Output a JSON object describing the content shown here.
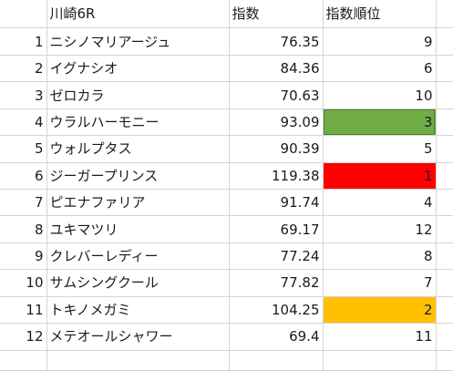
{
  "header": {
    "race": "川崎6R",
    "index": "指数",
    "rank": "指数順位"
  },
  "rows": [
    {
      "no": "1",
      "name": "ニシノマリアージュ",
      "index": "76.35",
      "rank": "9",
      "highlight": ""
    },
    {
      "no": "2",
      "name": "イグナシオ",
      "index": "84.36",
      "rank": "6",
      "highlight": ""
    },
    {
      "no": "3",
      "name": "ゼロカラ",
      "index": "70.63",
      "rank": "10",
      "highlight": ""
    },
    {
      "no": "4",
      "name": "ウラルハーモニー",
      "index": "93.09",
      "rank": "3",
      "highlight": "#70ad47"
    },
    {
      "no": "5",
      "name": "ウォルプタス",
      "index": "90.39",
      "rank": "5",
      "highlight": ""
    },
    {
      "no": "6",
      "name": "ジーガープリンス",
      "index": "119.38",
      "rank": "1",
      "highlight": "#ff0000"
    },
    {
      "no": "7",
      "name": "ピエナファリア",
      "index": "91.74",
      "rank": "4",
      "highlight": ""
    },
    {
      "no": "8",
      "name": "ユキマツリ",
      "index": "69.17",
      "rank": "12",
      "highlight": ""
    },
    {
      "no": "9",
      "name": "クレバーレディー",
      "index": "77.24",
      "rank": "8",
      "highlight": ""
    },
    {
      "no": "10",
      "name": "サムシングクール",
      "index": "77.82",
      "rank": "7",
      "highlight": ""
    },
    {
      "no": "11",
      "name": "トキノメガミ",
      "index": "104.25",
      "rank": "2",
      "highlight": "#ffc000"
    },
    {
      "no": "12",
      "name": "メテオールシャワー",
      "index": "69.4",
      "rank": "11",
      "highlight": ""
    }
  ]
}
